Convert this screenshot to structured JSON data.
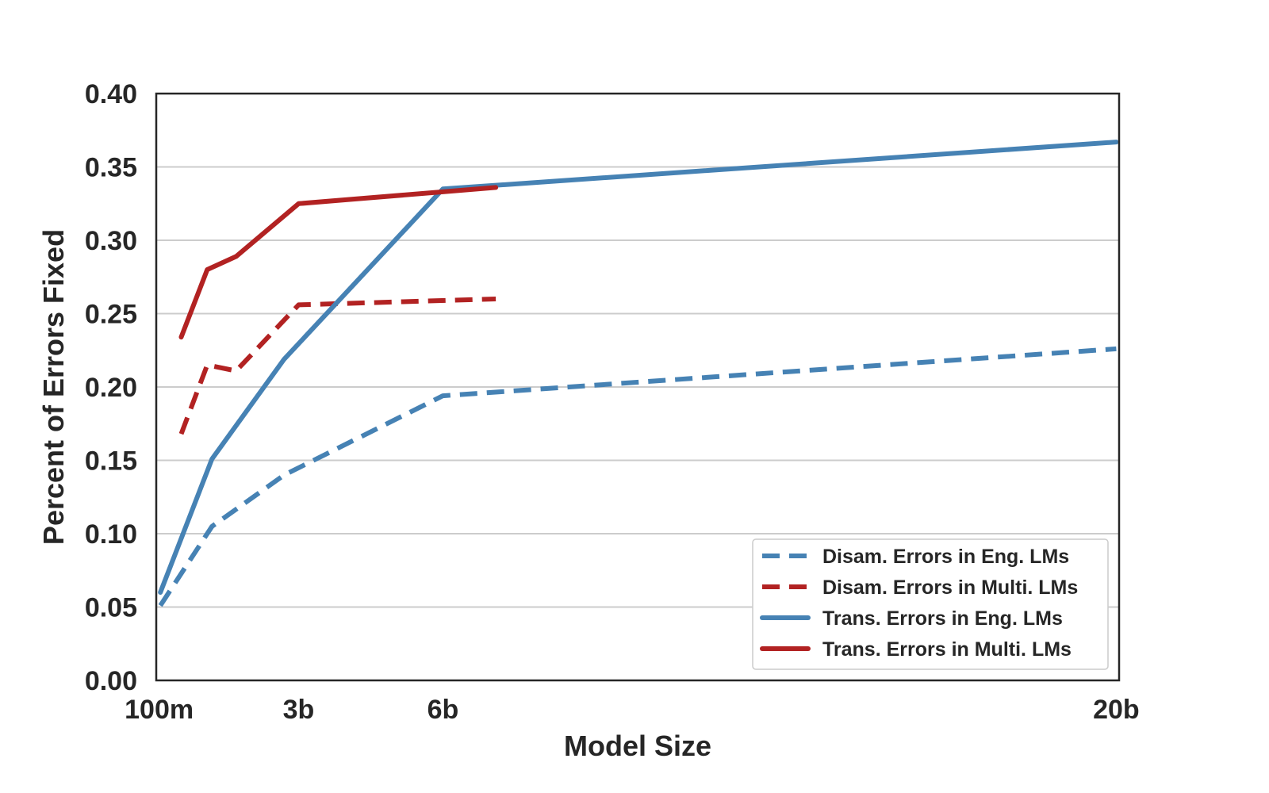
{
  "chart_data": {
    "type": "line",
    "title": "",
    "xlabel": "Model Size",
    "ylabel": "Percent of Errors Fixed",
    "ylim": [
      0,
      0.4
    ],
    "xlim": [
      0.04,
      20.06
    ],
    "x_ticks": [
      {
        "value": 0.1,
        "label": "100m"
      },
      {
        "value": 3,
        "label": "3b"
      },
      {
        "value": 6,
        "label": "6b"
      },
      {
        "value": 20,
        "label": "20b"
      }
    ],
    "y_ticks": [
      {
        "value": 0.0,
        "label": "0.00"
      },
      {
        "value": 0.05,
        "label": "0.05"
      },
      {
        "value": 0.1,
        "label": "0.10"
      },
      {
        "value": 0.15,
        "label": "0.15"
      },
      {
        "value": 0.2,
        "label": "0.20"
      },
      {
        "value": 0.25,
        "label": "0.25"
      },
      {
        "value": 0.3,
        "label": "0.30"
      },
      {
        "value": 0.35,
        "label": "0.35"
      },
      {
        "value": 0.4,
        "label": "0.40"
      }
    ],
    "grid": "horizontal",
    "legend_position": "bottom-right",
    "series": [
      {
        "name": "Disam. Errors in Eng. LMs",
        "color": "#4682b4",
        "style": "dashed",
        "x": [
          0.125,
          1.2,
          2.7,
          6,
          20
        ],
        "y": [
          0.051,
          0.105,
          0.14,
          0.194,
          0.226
        ]
      },
      {
        "name": "Disam. Errors in Multi. LMs",
        "color": "#b22222",
        "style": "dashed",
        "x": [
          0.56,
          1.1,
          1.7,
          3,
          7.1
        ],
        "y": [
          0.168,
          0.215,
          0.211,
          0.256,
          0.26
        ]
      },
      {
        "name": "Trans. Errors in Eng. LMs",
        "color": "#4682b4",
        "style": "solid",
        "x": [
          0.125,
          1.2,
          2.7,
          6,
          20
        ],
        "y": [
          0.06,
          0.151,
          0.219,
          0.335,
          0.367
        ]
      },
      {
        "name": "Trans. Errors in Multi. LMs",
        "color": "#b22222",
        "style": "solid",
        "x": [
          0.56,
          1.1,
          1.7,
          3,
          6,
          7.1
        ],
        "y": [
          0.234,
          0.28,
          0.289,
          0.325,
          0.333,
          0.336
        ]
      }
    ]
  }
}
